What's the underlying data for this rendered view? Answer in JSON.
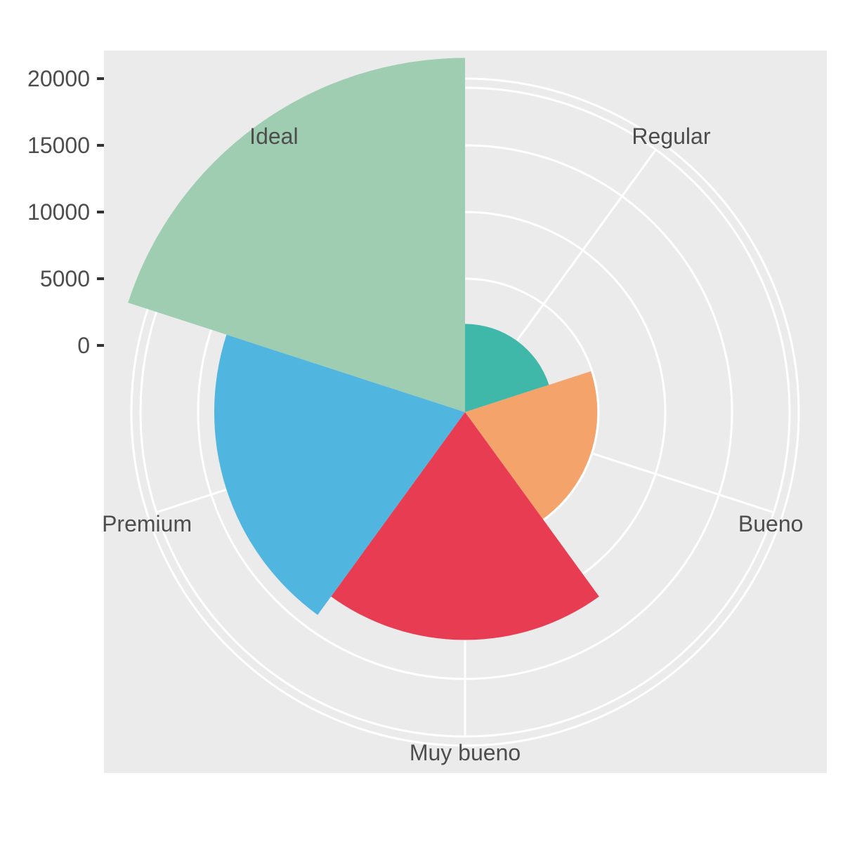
{
  "chart_data": {
    "type": "polar-bar",
    "title": "",
    "categories": [
      "Regular",
      "Bueno",
      "Muy bueno",
      "Premium",
      "Ideal"
    ],
    "values": [
      1610,
      4906,
      12082,
      13791,
      21551
    ],
    "colors": [
      "#40B8A9",
      "#F4A36B",
      "#E83C53",
      "#50B6E0",
      "#9ECDB2"
    ],
    "r_ticks": [
      0,
      5000,
      10000,
      15000,
      20000
    ],
    "r_tick_labels": [
      "0",
      "5000",
      "10000",
      "15000",
      "20000"
    ],
    "r_range": [
      -5000,
      22000
    ],
    "grid": true,
    "legend": "none",
    "panel_background": "#EBEBEB",
    "grid_color": "#FFFFFF"
  }
}
